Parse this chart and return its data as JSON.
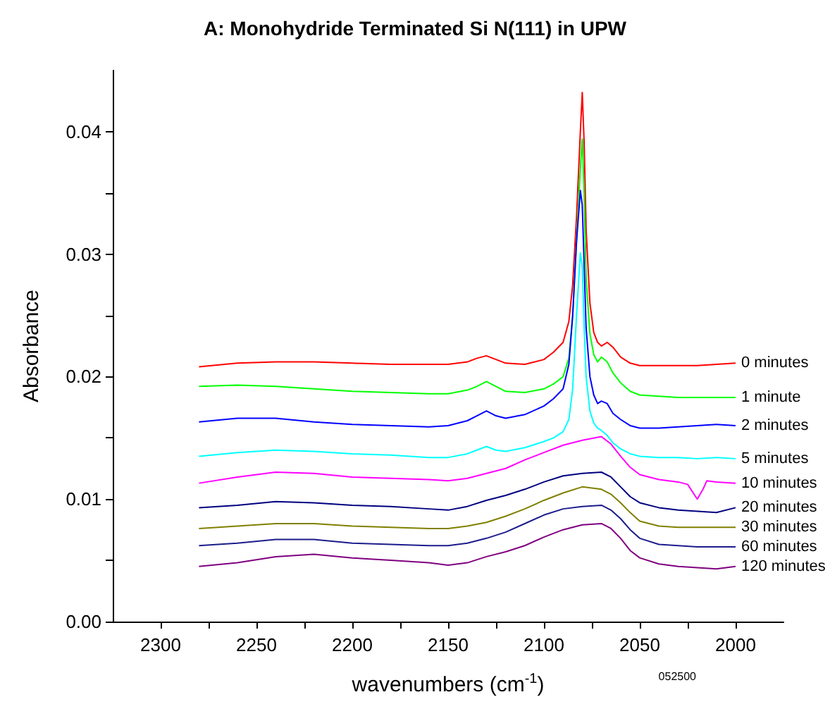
{
  "chart_data": {
    "type": "line",
    "title": "A: Monohydride Terminated Si N(111) in UPW",
    "xlabel": "wavenumbers (cm$^{-1}$)",
    "ylabel": "Absorbance",
    "annotations": [
      "052500"
    ],
    "xlim": [
      2325,
      1975
    ],
    "xticks": [
      2300,
      {
        "value": 2275,
        "label": null
      },
      2250,
      {
        "value": 2225,
        "label": null
      },
      2200,
      {
        "value": 2175,
        "label": null
      },
      2150,
      {
        "value": 2125,
        "label": null
      },
      2100,
      {
        "value": 2075,
        "label": null
      },
      2050,
      {
        "value": 2025,
        "label": null
      },
      2000
    ],
    "ylim": [
      0,
      0.045
    ],
    "yticks": [
      {
        "value": 0,
        "label": "0.00"
      },
      {
        "value": 0.005,
        "label": null
      },
      0.01,
      {
        "value": 0.015,
        "label": null
      },
      0.02,
      {
        "value": 0.025,
        "label": null
      },
      0.03,
      {
        "value": 0.035,
        "label": null
      },
      0.04
    ],
    "grid": false,
    "legend": false,
    "marker": "none",
    "line_style": "solid",
    "series": [
      {
        "name": "0 minutes",
        "color": "#ff0000",
        "x": [
          2280,
          2260,
          2240,
          2220,
          2200,
          2180,
          2160,
          2150,
          2140,
          2135,
          2130,
          2125,
          2120,
          2110,
          2100,
          2095,
          2090,
          2087,
          2085,
          2083,
          2081,
          2080,
          2079,
          2078,
          2076,
          2074,
          2072,
          2070,
          2067,
          2064,
          2060,
          2055,
          2050,
          2040,
          2030,
          2020,
          2010,
          2000
        ],
        "values": [
          0.0208,
          0.0211,
          0.0212,
          0.0212,
          0.0211,
          0.021,
          0.021,
          0.021,
          0.0212,
          0.0215,
          0.0217,
          0.0214,
          0.0211,
          0.021,
          0.0214,
          0.022,
          0.0228,
          0.0245,
          0.0275,
          0.033,
          0.04,
          0.0432,
          0.039,
          0.032,
          0.026,
          0.0236,
          0.0228,
          0.0225,
          0.0228,
          0.0224,
          0.0216,
          0.0211,
          0.0209,
          0.0209,
          0.0209,
          0.0209,
          0.021,
          0.0211
        ]
      },
      {
        "name": "1 minute",
        "color": "#00ff00",
        "x": [
          2280,
          2260,
          2240,
          2220,
          2200,
          2180,
          2160,
          2150,
          2140,
          2135,
          2130,
          2125,
          2120,
          2110,
          2100,
          2095,
          2090,
          2087,
          2085,
          2083,
          2081,
          2080,
          2079,
          2078,
          2076,
          2074,
          2072,
          2070,
          2067,
          2064,
          2060,
          2055,
          2050,
          2040,
          2030,
          2020,
          2010,
          2000
        ],
        "values": [
          0.0192,
          0.0193,
          0.0192,
          0.019,
          0.0188,
          0.0187,
          0.0186,
          0.0186,
          0.0189,
          0.0192,
          0.0196,
          0.0192,
          0.0188,
          0.0187,
          0.019,
          0.0194,
          0.02,
          0.0215,
          0.025,
          0.031,
          0.037,
          0.0394,
          0.035,
          0.028,
          0.0235,
          0.0218,
          0.0212,
          0.0216,
          0.0212,
          0.0203,
          0.0195,
          0.0188,
          0.0185,
          0.0184,
          0.0183,
          0.0183,
          0.0183,
          0.0183
        ]
      },
      {
        "name": "2 minutes",
        "color": "#0000ff",
        "x": [
          2280,
          2260,
          2240,
          2220,
          2200,
          2180,
          2160,
          2150,
          2140,
          2135,
          2130,
          2125,
          2120,
          2110,
          2100,
          2095,
          2090,
          2087,
          2085,
          2083,
          2081,
          2080,
          2079,
          2078,
          2076,
          2074,
          2072,
          2070,
          2067,
          2064,
          2060,
          2055,
          2050,
          2040,
          2030,
          2020,
          2010,
          2000
        ],
        "values": [
          0.0163,
          0.0166,
          0.0166,
          0.0163,
          0.0161,
          0.016,
          0.0159,
          0.016,
          0.0164,
          0.0168,
          0.0172,
          0.0168,
          0.0166,
          0.0169,
          0.0176,
          0.0182,
          0.019,
          0.021,
          0.025,
          0.031,
          0.0352,
          0.034,
          0.029,
          0.024,
          0.02,
          0.0185,
          0.0178,
          0.018,
          0.0178,
          0.017,
          0.0165,
          0.016,
          0.0158,
          0.0158,
          0.0159,
          0.016,
          0.0161,
          0.016
        ]
      },
      {
        "name": "5 minutes",
        "color": "#00ffff",
        "x": [
          2280,
          2260,
          2240,
          2220,
          2200,
          2180,
          2160,
          2150,
          2140,
          2135,
          2130,
          2125,
          2120,
          2110,
          2100,
          2095,
          2090,
          2087,
          2085,
          2083,
          2081,
          2080,
          2079,
          2078,
          2076,
          2074,
          2072,
          2070,
          2067,
          2064,
          2060,
          2055,
          2050,
          2040,
          2030,
          2020,
          2010,
          2000
        ],
        "values": [
          0.0135,
          0.0138,
          0.014,
          0.0139,
          0.0137,
          0.0136,
          0.0134,
          0.0134,
          0.0137,
          0.014,
          0.0143,
          0.014,
          0.0139,
          0.0142,
          0.0147,
          0.015,
          0.0155,
          0.0165,
          0.019,
          0.025,
          0.0301,
          0.029,
          0.024,
          0.02,
          0.0172,
          0.0162,
          0.0158,
          0.0156,
          0.0152,
          0.0146,
          0.0141,
          0.0137,
          0.0135,
          0.0134,
          0.0134,
          0.0133,
          0.0134,
          0.0133
        ]
      },
      {
        "name": "10 minutes",
        "color": "#ff00ff",
        "x": [
          2280,
          2260,
          2240,
          2220,
          2200,
          2180,
          2160,
          2150,
          2140,
          2130,
          2120,
          2110,
          2100,
          2090,
          2080,
          2070,
          2065,
          2060,
          2055,
          2050,
          2040,
          2030,
          2025,
          2020,
          2017,
          2015,
          2010,
          2000
        ],
        "values": [
          0.0113,
          0.0118,
          0.0122,
          0.0121,
          0.0118,
          0.0117,
          0.0116,
          0.0115,
          0.0117,
          0.0121,
          0.0125,
          0.0132,
          0.0138,
          0.0144,
          0.0148,
          0.0151,
          0.0145,
          0.0135,
          0.0126,
          0.012,
          0.0116,
          0.0114,
          0.0112,
          0.01,
          0.0108,
          0.0115,
          0.0114,
          0.0113
        ]
      },
      {
        "name": "20 minutes",
        "color": "#000080",
        "x": [
          2280,
          2260,
          2240,
          2220,
          2200,
          2180,
          2160,
          2150,
          2140,
          2130,
          2120,
          2110,
          2100,
          2090,
          2080,
          2070,
          2065,
          2060,
          2055,
          2050,
          2040,
          2030,
          2020,
          2010,
          2000
        ],
        "values": [
          0.0093,
          0.0095,
          0.0098,
          0.0097,
          0.0095,
          0.0094,
          0.0092,
          0.0091,
          0.0094,
          0.0099,
          0.0103,
          0.0108,
          0.0114,
          0.0119,
          0.0121,
          0.0122,
          0.0118,
          0.011,
          0.0102,
          0.0097,
          0.0093,
          0.0091,
          0.009,
          0.0089,
          0.0093
        ]
      },
      {
        "name": "30 minutes",
        "color": "#808000",
        "x": [
          2280,
          2260,
          2240,
          2220,
          2200,
          2180,
          2160,
          2150,
          2140,
          2130,
          2120,
          2110,
          2100,
          2090,
          2080,
          2070,
          2065,
          2060,
          2055,
          2050,
          2040,
          2030,
          2020,
          2010,
          2000
        ],
        "values": [
          0.0076,
          0.0078,
          0.008,
          0.008,
          0.0078,
          0.0077,
          0.0076,
          0.0076,
          0.0078,
          0.0081,
          0.0086,
          0.0092,
          0.0099,
          0.0105,
          0.011,
          0.0108,
          0.0104,
          0.0097,
          0.0089,
          0.0082,
          0.0078,
          0.0077,
          0.0077,
          0.0077,
          0.0077
        ]
      },
      {
        "name": "60 minutes",
        "color": "#1c1c8c",
        "x": [
          2280,
          2260,
          2240,
          2220,
          2200,
          2180,
          2160,
          2150,
          2140,
          2130,
          2120,
          2110,
          2100,
          2090,
          2080,
          2070,
          2065,
          2060,
          2055,
          2050,
          2040,
          2030,
          2020,
          2010,
          2000
        ],
        "values": [
          0.0062,
          0.0064,
          0.0067,
          0.0067,
          0.0064,
          0.0063,
          0.0062,
          0.0062,
          0.0064,
          0.0068,
          0.0073,
          0.008,
          0.0087,
          0.0092,
          0.0094,
          0.0095,
          0.0091,
          0.0084,
          0.0075,
          0.0068,
          0.0063,
          0.0062,
          0.0061,
          0.0061,
          0.0061
        ]
      },
      {
        "name": "120 minutes",
        "color": "#800080",
        "x": [
          2280,
          2260,
          2240,
          2220,
          2200,
          2180,
          2160,
          2150,
          2140,
          2130,
          2120,
          2110,
          2100,
          2090,
          2080,
          2070,
          2065,
          2060,
          2055,
          2050,
          2040,
          2030,
          2020,
          2010,
          2000
        ],
        "values": [
          0.0045,
          0.0048,
          0.0053,
          0.0055,
          0.0052,
          0.005,
          0.0048,
          0.0046,
          0.0048,
          0.0053,
          0.0057,
          0.0062,
          0.0069,
          0.0075,
          0.0079,
          0.008,
          0.0076,
          0.0068,
          0.0058,
          0.0052,
          0.0047,
          0.0045,
          0.0044,
          0.0043,
          0.0045
        ]
      }
    ]
  }
}
